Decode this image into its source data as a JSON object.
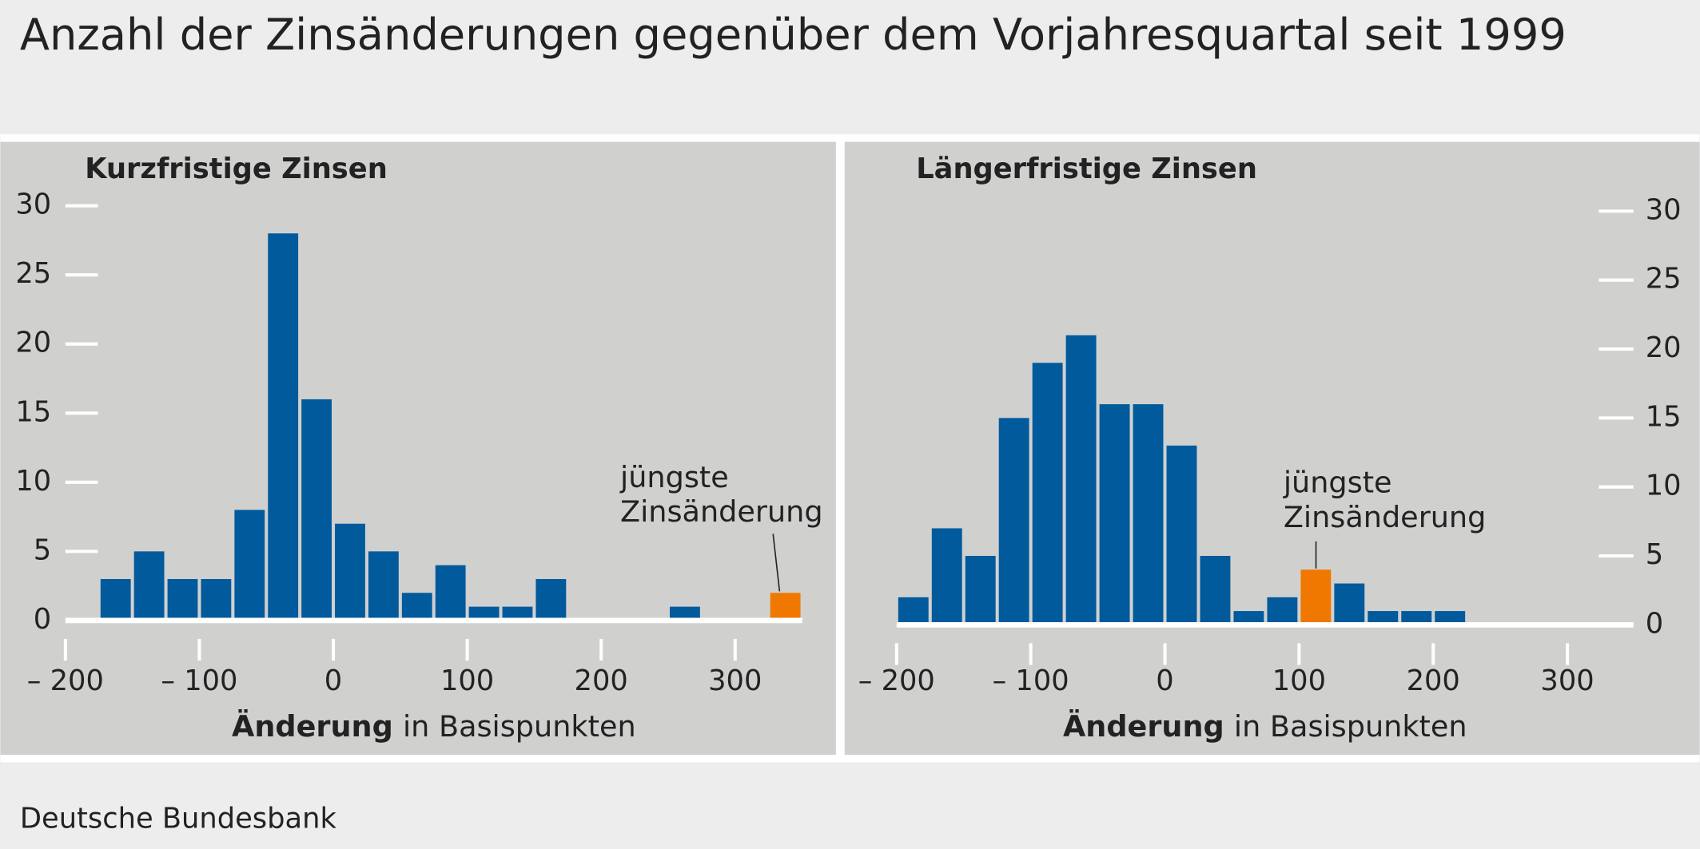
{
  "title": "Anzahl der Zinsänderungen gegenüber dem Vorjahresquartal seit 1999",
  "source": "Deutsche Bundesbank",
  "chart_data": [
    {
      "type": "histogram",
      "title": "Kurzfristige Zinsen",
      "bins": [
        -175,
        -150,
        -125,
        -100,
        -75,
        -50,
        -25,
        0,
        25,
        50,
        75,
        100,
        125,
        150,
        175,
        200,
        225,
        250,
        275,
        300,
        325,
        350
      ],
      "counts": [
        3,
        5,
        3,
        3,
        8,
        28,
        16,
        7,
        5,
        2,
        4,
        1,
        1,
        3,
        0,
        0,
        0,
        1,
        0,
        0,
        2
      ],
      "colors": [
        "#005a9c",
        "#005a9c",
        "#005a9c",
        "#005a9c",
        "#005a9c",
        "#005a9c",
        "#005a9c",
        "#005a9c",
        "#005a9c",
        "#005a9c",
        "#005a9c",
        "#005a9c",
        "#005a9c",
        "#005a9c",
        "#005a9c",
        "#005a9c",
        "#005a9c",
        "#005a9c",
        "#005a9c",
        "#005a9c",
        "#f07800"
      ],
      "xlim": [
        -200,
        350
      ],
      "xticks": [
        {
          "value": -200,
          "label": "– 200"
        },
        {
          "value": -100,
          "label": "– 100"
        },
        0,
        100,
        200,
        300
      ],
      "ylim": [
        0,
        30
      ],
      "yticks": [
        0,
        5,
        10,
        15,
        20,
        25,
        30
      ],
      "y_axis_side": "left",
      "x_label_bold": "Änderung",
      "x_label": "in Basispunkten",
      "annotation": [
        "jüngste",
        "Zinsänderung"
      ]
    },
    {
      "type": "histogram",
      "title": "Längerfristige Zinsen",
      "bins": [
        -200,
        -175,
        -150,
        -125,
        -100,
        -75,
        -50,
        -25,
        0,
        25,
        50,
        75,
        100,
        125,
        150,
        175,
        200,
        225
      ],
      "counts": [
        2,
        7,
        5,
        15,
        19,
        21,
        16,
        16,
        13,
        5,
        1,
        2,
        4,
        3,
        1,
        1,
        1
      ],
      "colors": [
        "#005a9c",
        "#005a9c",
        "#005a9c",
        "#005a9c",
        "#005a9c",
        "#005a9c",
        "#005a9c",
        "#005a9c",
        "#005a9c",
        "#005a9c",
        "#005a9c",
        "#005a9c",
        "#f07800",
        "#005a9c",
        "#005a9c",
        "#005a9c",
        "#005a9c"
      ],
      "xlim": [
        -200,
        350
      ],
      "xticks": [
        {
          "value": -200,
          "label": "– 200"
        },
        {
          "value": -100,
          "label": "– 100"
        },
        0,
        100,
        200,
        300
      ],
      "ylim": [
        0,
        30
      ],
      "yticks": [
        0,
        5,
        10,
        15,
        20,
        25,
        30
      ],
      "y_axis_side": "right",
      "x_label_bold": "Änderung",
      "x_label": "in Basispunkten",
      "annotation": [
        "jüngste",
        "Zinsänderung"
      ]
    }
  ]
}
